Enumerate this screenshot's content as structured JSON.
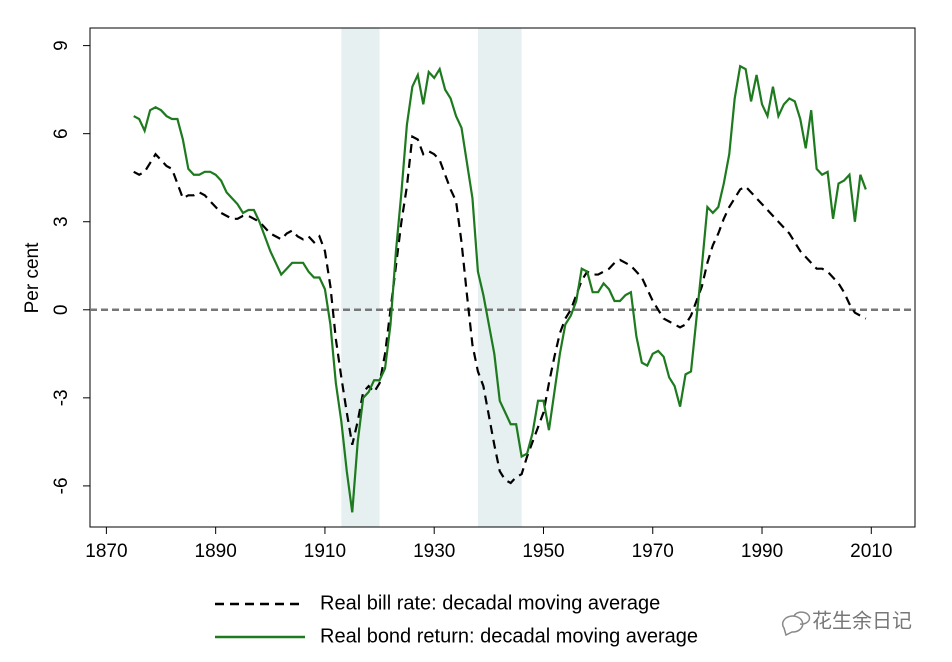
{
  "chart_data": {
    "type": "line",
    "y_label": "Per cent",
    "x": [
      1875,
      1876,
      1877,
      1878,
      1879,
      1880,
      1881,
      1882,
      1883,
      1884,
      1885,
      1886,
      1887,
      1888,
      1889,
      1890,
      1891,
      1892,
      1893,
      1894,
      1895,
      1896,
      1897,
      1898,
      1899,
      1900,
      1901,
      1902,
      1903,
      1904,
      1905,
      1906,
      1907,
      1908,
      1909,
      1910,
      1911,
      1912,
      1913,
      1914,
      1915,
      1916,
      1917,
      1918,
      1919,
      1920,
      1921,
      1922,
      1923,
      1924,
      1925,
      1926,
      1927,
      1928,
      1929,
      1930,
      1931,
      1932,
      1933,
      1934,
      1935,
      1936,
      1937,
      1938,
      1939,
      1940,
      1941,
      1942,
      1943,
      1944,
      1945,
      1946,
      1947,
      1948,
      1949,
      1950,
      1951,
      1952,
      1953,
      1954,
      1955,
      1956,
      1957,
      1958,
      1959,
      1960,
      1961,
      1962,
      1963,
      1964,
      1965,
      1966,
      1967,
      1968,
      1969,
      1970,
      1971,
      1972,
      1973,
      1974,
      1975,
      1976,
      1977,
      1978,
      1979,
      1980,
      1981,
      1982,
      1983,
      1984,
      1985,
      1986,
      1987,
      1988,
      1989,
      1990,
      1991,
      1992,
      1993,
      1994,
      1995,
      1996,
      1997,
      1998,
      1999,
      2000,
      2001,
      2002,
      2003,
      2004,
      2005,
      2006,
      2007,
      2008,
      2009
    ],
    "series": [
      {
        "name": "Real bill rate: decadal moving average",
        "color": "#000000",
        "dash": true,
        "values": [
          4.7,
          4.6,
          4.7,
          5.0,
          5.3,
          5.1,
          4.9,
          4.8,
          4.3,
          3.8,
          3.9,
          3.9,
          4.0,
          3.9,
          3.7,
          3.5,
          3.3,
          3.2,
          3.1,
          3.1,
          3.2,
          3.2,
          3.1,
          3.0,
          2.8,
          2.6,
          2.5,
          2.4,
          2.6,
          2.7,
          2.5,
          2.4,
          2.5,
          2.3,
          2.5,
          2.0,
          0.8,
          -1.0,
          -2.3,
          -3.5,
          -4.6,
          -3.8,
          -2.8,
          -2.6,
          -2.8,
          -2.5,
          -1.5,
          0.0,
          1.5,
          3.0,
          4.2,
          5.9,
          5.8,
          5.3,
          5.4,
          5.3,
          5.1,
          4.6,
          4.1,
          3.7,
          2.3,
          0.5,
          -1.2,
          -2.1,
          -2.6,
          -3.6,
          -4.6,
          -5.5,
          -5.8,
          -5.9,
          -5.7,
          -5.6,
          -5.0,
          -4.5,
          -4.0,
          -3.5,
          -2.5,
          -1.6,
          -0.8,
          -0.3,
          0.0,
          0.5,
          1.0,
          1.3,
          1.2,
          1.2,
          1.3,
          1.4,
          1.6,
          1.7,
          1.6,
          1.5,
          1.3,
          1.1,
          0.7,
          0.3,
          0.0,
          -0.3,
          -0.4,
          -0.5,
          -0.6,
          -0.5,
          -0.2,
          0.3,
          0.8,
          1.6,
          2.2,
          2.6,
          3.1,
          3.5,
          3.8,
          4.1,
          4.2,
          4.0,
          3.8,
          3.6,
          3.4,
          3.2,
          3.0,
          2.8,
          2.6,
          2.3,
          2.0,
          1.8,
          1.6,
          1.4,
          1.4,
          1.3,
          1.1,
          0.9,
          0.6,
          0.2,
          -0.1,
          -0.2,
          -0.3
        ]
      },
      {
        "name": "Real bond return: decadal moving average",
        "color": "#1e7a1e",
        "dash": false,
        "values": [
          6.6,
          6.5,
          6.1,
          6.8,
          6.9,
          6.8,
          6.6,
          6.5,
          6.5,
          5.8,
          4.8,
          4.6,
          4.6,
          4.7,
          4.7,
          4.6,
          4.4,
          4.0,
          3.8,
          3.6,
          3.3,
          3.4,
          3.4,
          3.0,
          2.5,
          2.0,
          1.6,
          1.2,
          1.4,
          1.6,
          1.6,
          1.6,
          1.3,
          1.1,
          1.1,
          0.7,
          -0.5,
          -2.5,
          -3.8,
          -5.5,
          -6.9,
          -4.5,
          -3.0,
          -2.8,
          -2.4,
          -2.4,
          -2.0,
          -0.5,
          2.0,
          4.0,
          6.3,
          7.6,
          8.0,
          7.0,
          8.1,
          7.9,
          8.2,
          7.5,
          7.2,
          6.6,
          6.2,
          5.0,
          3.8,
          1.3,
          0.5,
          -0.5,
          -1.5,
          -3.1,
          -3.5,
          -3.9,
          -3.9,
          -5.0,
          -4.9,
          -4.2,
          -3.1,
          -3.1,
          -4.1,
          -2.8,
          -1.5,
          -0.5,
          -0.2,
          0.3,
          1.4,
          1.3,
          0.6,
          0.6,
          0.9,
          0.7,
          0.3,
          0.3,
          0.5,
          0.6,
          -0.9,
          -1.8,
          -1.9,
          -1.5,
          -1.4,
          -1.6,
          -2.3,
          -2.6,
          -3.3,
          -2.2,
          -2.1,
          -0.3,
          1.5,
          3.5,
          3.3,
          3.5,
          4.3,
          5.3,
          7.2,
          8.3,
          8.2,
          7.1,
          8.0,
          7.0,
          6.6,
          7.6,
          6.6,
          7.0,
          7.2,
          7.1,
          6.5,
          5.5,
          6.8,
          4.8,
          4.6,
          4.7,
          3.1,
          4.3,
          4.4,
          4.6,
          3.0,
          4.6,
          4.1
        ]
      }
    ],
    "shaded_regions": [
      [
        1913,
        1920
      ],
      [
        1938,
        1946
      ]
    ],
    "shade_color": "#e6f0f0",
    "hline": 0,
    "xlim": [
      1867,
      2018
    ],
    "ylim": [
      -7.4,
      9.6
    ],
    "xticks": [
      1870,
      1890,
      1910,
      1930,
      1950,
      1970,
      1990,
      2010
    ],
    "yticks": [
      -6,
      -3,
      0,
      3,
      6,
      9
    ],
    "grid": false,
    "watermark": "花生余日记"
  }
}
